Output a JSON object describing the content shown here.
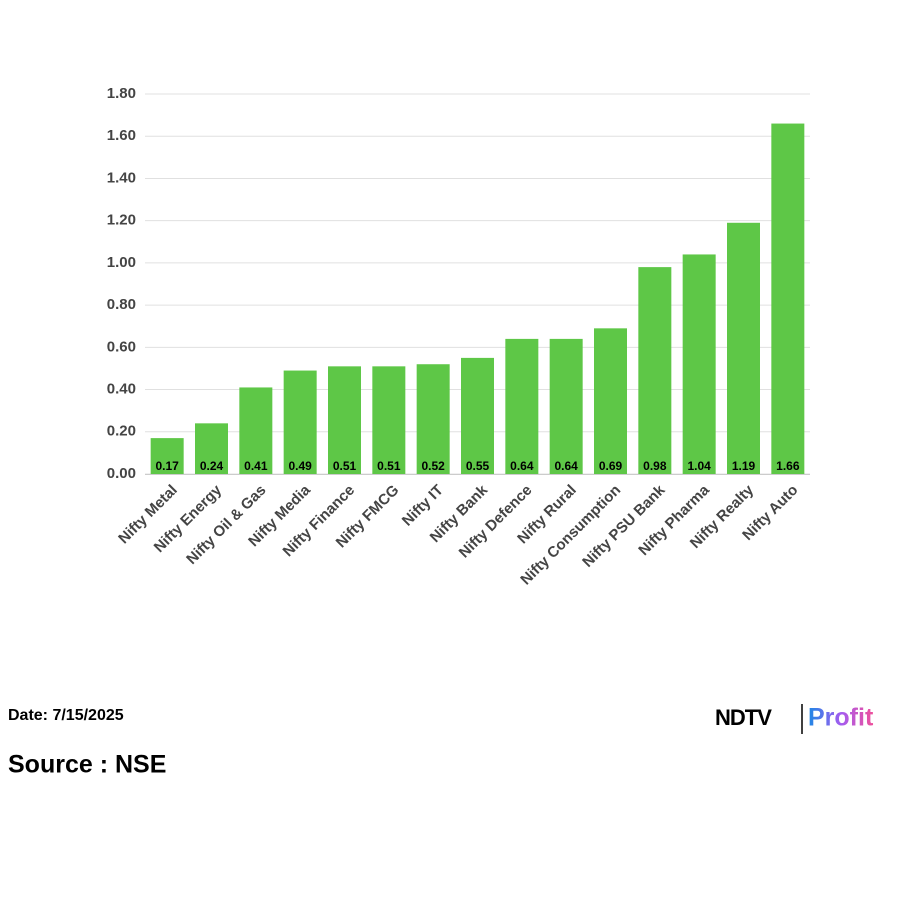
{
  "chart_data": {
    "type": "bar",
    "categories": [
      "Nifty Metal",
      "Nifty Energy",
      "Nifty Oil & Gas",
      "Nifty Media",
      "Nifty Finance",
      "Nifty FMCG",
      "Nifty IT",
      "Nifty Bank",
      "Nifty Defence",
      "Nifty Rural",
      "Nifty Consumption",
      "Nifty PSU Bank",
      "Nifty Pharma",
      "Nifty Realty",
      "Nifty Auto"
    ],
    "values": [
      0.17,
      0.24,
      0.41,
      0.49,
      0.51,
      0.51,
      0.52,
      0.55,
      0.64,
      0.64,
      0.69,
      0.98,
      1.04,
      1.19,
      1.66
    ],
    "color": "#5ec747",
    "ylim": [
      0,
      1.8
    ],
    "yticks": [
      {
        "value": 0,
        "label": "0.00"
      },
      {
        "value": 0.2,
        "label": "0.20"
      },
      {
        "value": 0.4,
        "label": "0.40"
      },
      {
        "value": 0.6,
        "label": "0.60"
      },
      {
        "value": 0.8,
        "label": "0.80"
      },
      {
        "value": 1,
        "label": "1.00"
      },
      {
        "value": 1.2,
        "label": "1.20"
      },
      {
        "value": 1.4,
        "label": "1.40"
      },
      {
        "value": 1.6,
        "label": "1.60"
      },
      {
        "value": 1.8,
        "label": "1.80"
      }
    ],
    "grid": true
  },
  "footer": {
    "date": "Date: 7/15/2025",
    "source": "Source : NSE"
  },
  "logo": {
    "brand": "NDTV",
    "product": "Profit"
  }
}
